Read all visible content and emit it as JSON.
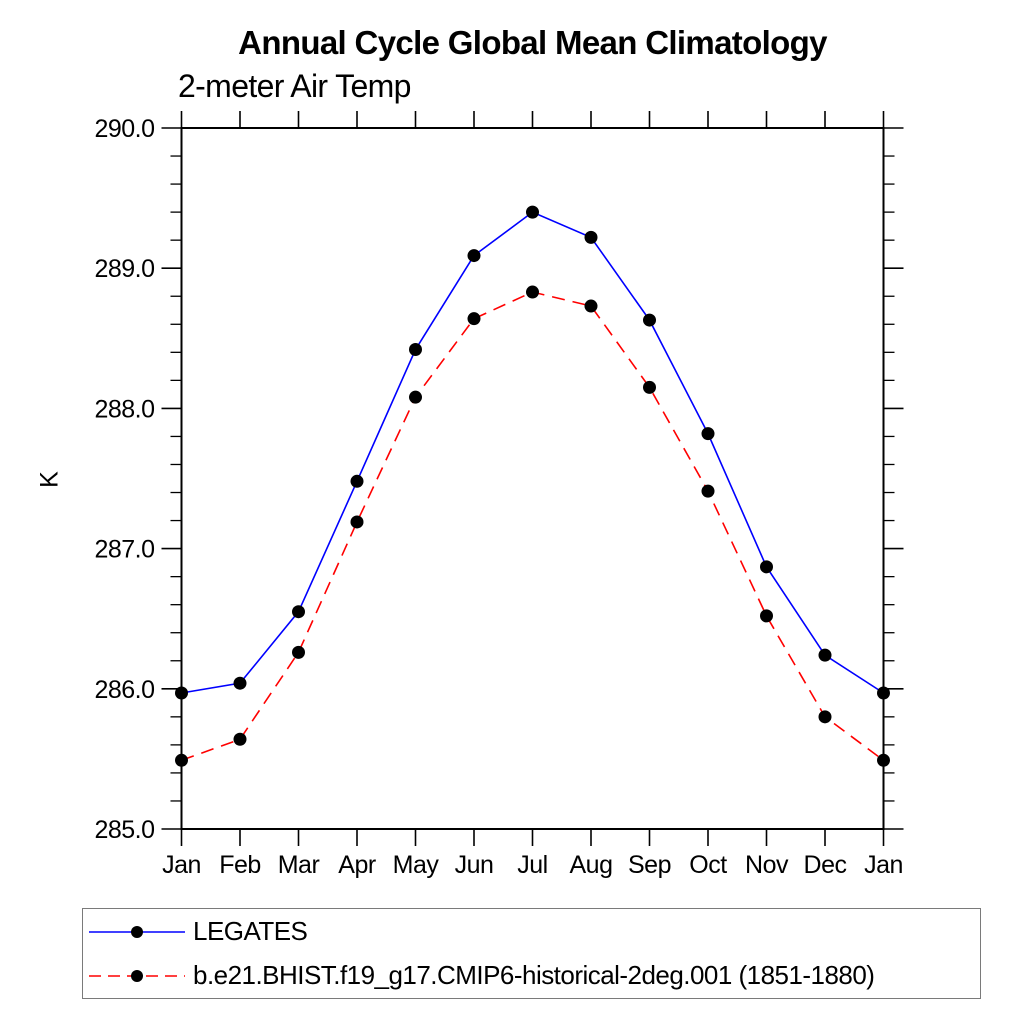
{
  "chart_data": {
    "type": "line",
    "title": "Annual Cycle Global Mean Climatology",
    "subtitle": "2-meter Air Temp",
    "ylabel": "K",
    "xlabel": "",
    "x_labels": [
      "Jan",
      "Feb",
      "Mar",
      "Apr",
      "May",
      "Jun",
      "Jul",
      "Aug",
      "Sep",
      "Oct",
      "Nov",
      "Dec",
      "Jan"
    ],
    "ylim": [
      285.0,
      290.0
    ],
    "ytick_values": [
      285.0,
      286.0,
      287.0,
      288.0,
      289.0,
      290.0
    ],
    "ytick_labels": [
      "285.0",
      "286.0",
      "287.0",
      "288.0",
      "289.0",
      "290.0"
    ],
    "yminor_step": 0.2,
    "grid": false,
    "frame": "box-with-outward-ticks",
    "marker": "filled-circle",
    "marker_color": "#000000",
    "legend_position": "bottom-left-boxed",
    "series": [
      {
        "name": "LEGATES",
        "color": "#0000ff",
        "dash": "solid",
        "values": [
          285.97,
          286.04,
          286.55,
          287.48,
          288.42,
          289.09,
          289.4,
          289.22,
          288.63,
          287.82,
          286.87,
          286.24,
          285.97
        ]
      },
      {
        "name": "b.e21.BHIST.f19_g17.CMIP6-historical-2deg.001 (1851-1880)",
        "color": "#ff0000",
        "dash": "dashed",
        "values": [
          285.49,
          285.64,
          286.26,
          287.19,
          288.08,
          288.64,
          288.83,
          288.73,
          288.15,
          287.41,
          286.52,
          285.8,
          285.49
        ]
      }
    ]
  }
}
